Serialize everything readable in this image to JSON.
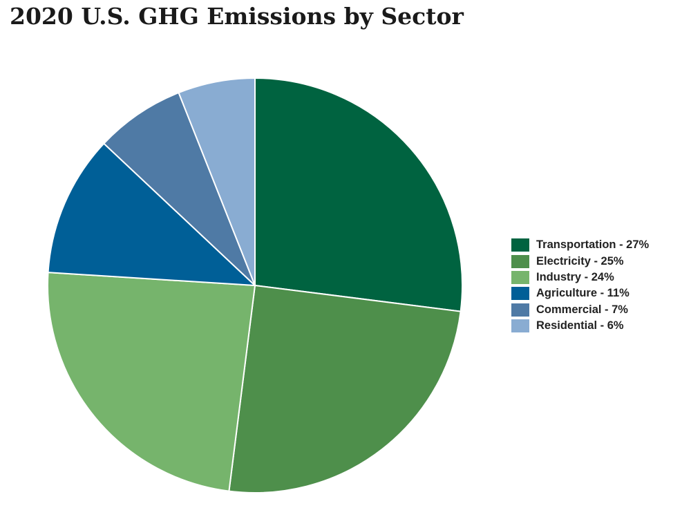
{
  "chart_data": {
    "type": "pie",
    "title": "2020 U.S. GHG Emissions by Sector",
    "slices": [
      {
        "label": "Transportation - 27%",
        "value": 27,
        "color": "#006340"
      },
      {
        "label": "Electricity - 25%",
        "value": 25,
        "color": "#4e8f4b"
      },
      {
        "label": "Industry - 24%",
        "value": 24,
        "color": "#76b46c"
      },
      {
        "label": "Agriculture - 11%",
        "value": 11,
        "color": "#005f97"
      },
      {
        "label": "Commercial - 7%",
        "value": 7,
        "color": "#4f7aa5"
      },
      {
        "label": "Residential - 6%",
        "value": 6,
        "color": "#89acd2"
      }
    ],
    "legend_position": "right"
  }
}
